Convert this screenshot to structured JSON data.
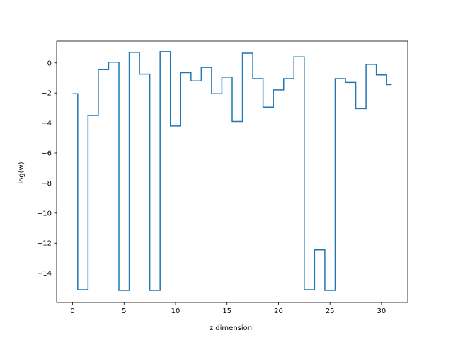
{
  "chart_data": {
    "type": "line",
    "drawstyle": "steps-mid",
    "title": "",
    "xlabel": "z dimension",
    "ylabel": "log(w)",
    "xlim": [
      -1.55,
      32.55
    ],
    "ylim": [
      -15.95,
      1.45
    ],
    "xticks": [
      0,
      5,
      10,
      15,
      20,
      25,
      30
    ],
    "yticks": [
      0,
      -2,
      -4,
      -6,
      -8,
      -10,
      -12,
      -14
    ],
    "grid": false,
    "legend": "none",
    "series": [
      {
        "color": "#1f77b4",
        "x": [
          0,
          1,
          2,
          3,
          4,
          5,
          6,
          7,
          8,
          9,
          10,
          11,
          12,
          13,
          14,
          15,
          16,
          17,
          18,
          19,
          20,
          21,
          22,
          23,
          24,
          25,
          26,
          27,
          28,
          29,
          30,
          31
        ],
        "values": [
          -2.05,
          -15.1,
          -3.5,
          -0.45,
          0.05,
          -15.15,
          0.7,
          -0.75,
          -15.15,
          0.75,
          -4.2,
          -0.65,
          -1.2,
          -0.3,
          -2.05,
          -0.95,
          -3.9,
          0.65,
          -1.05,
          -2.95,
          -1.8,
          -1.05,
          0.4,
          -15.1,
          -12.45,
          -15.15,
          -1.05,
          -1.3,
          -3.05,
          -0.1,
          -0.8,
          -1.45
        ]
      }
    ]
  }
}
